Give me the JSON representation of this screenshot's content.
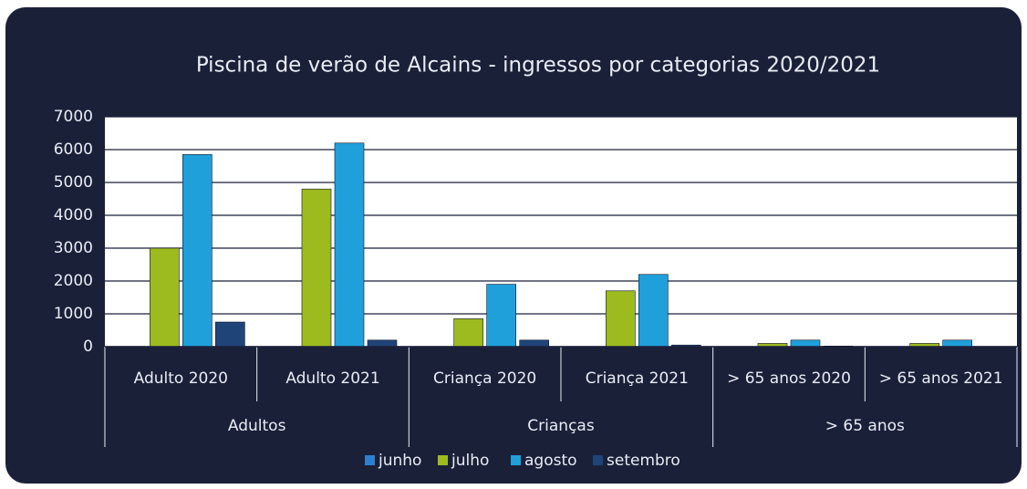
{
  "chart_data": {
    "type": "bar",
    "title": "Piscina de verão de Alcains - ingressos por categorias 2020/2021",
    "groups": [
      {
        "label": "Adultos",
        "categories": [
          "Adulto 2020",
          "Adulto 2021"
        ]
      },
      {
        "label": "Crianças",
        "categories": [
          "Criança 2020",
          "Criança 2021"
        ]
      },
      {
        "label": "> 65 anos",
        "categories": [
          "> 65 anos 2020",
          "> 65 anos 2021"
        ]
      }
    ],
    "series": [
      {
        "name": "junho",
        "color": "#2f7fd0",
        "values": [
          0,
          0,
          0,
          0,
          0,
          0
        ]
      },
      {
        "name": "julho",
        "color": "#9dbb1f",
        "values": [
          3000,
          4800,
          850,
          1700,
          100,
          100
        ]
      },
      {
        "name": "agosto",
        "color": "#1fa0da",
        "values": [
          5850,
          6200,
          1900,
          2200,
          200,
          200
        ]
      },
      {
        "name": "setembro",
        "color": "#1f4478",
        "values": [
          750,
          200,
          200,
          50,
          20,
          0
        ]
      }
    ],
    "ylim": [
      0,
      7000
    ],
    "yticks": [
      0,
      1000,
      2000,
      3000,
      4000,
      5000,
      6000,
      7000
    ],
    "grid": true
  }
}
